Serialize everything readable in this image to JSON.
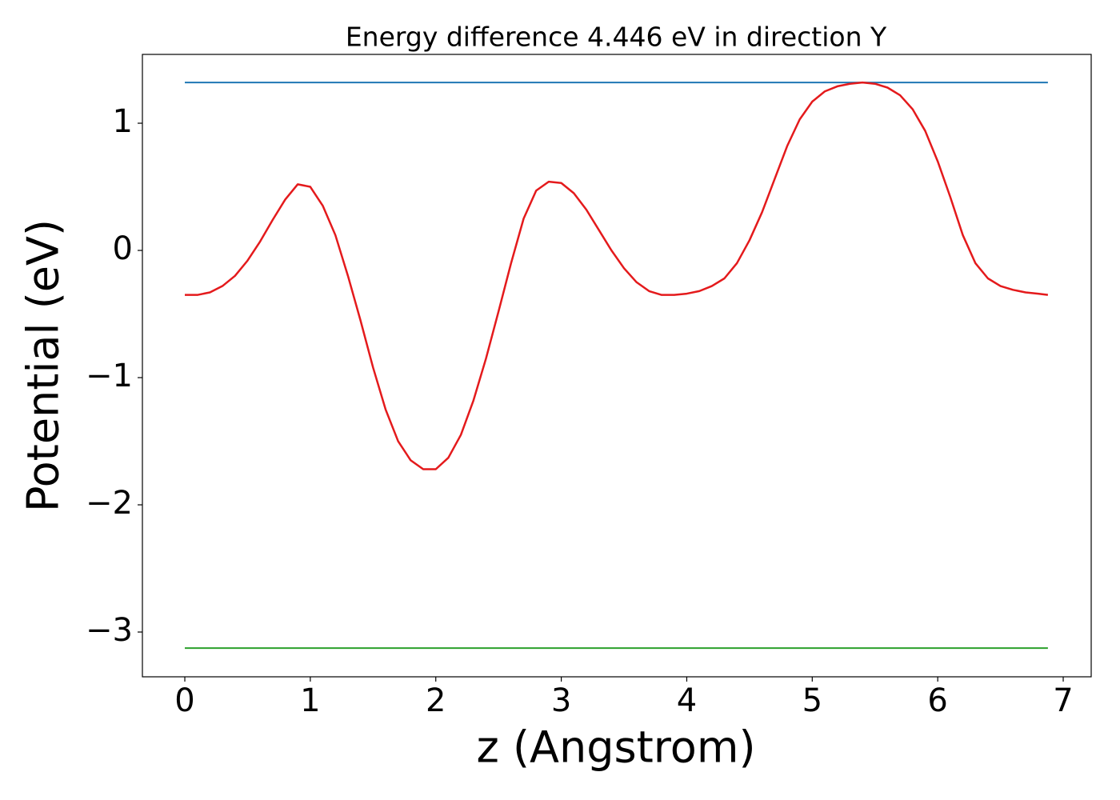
{
  "chart_data": {
    "type": "line",
    "title": "Energy difference 4.446 eV in direction Y",
    "xlabel": "z (Angstrom)",
    "ylabel": "Potential (eV)",
    "x": [
      0,
      0.1,
      0.2,
      0.3,
      0.4,
      0.5,
      0.6,
      0.7,
      0.8,
      0.9,
      1.0,
      1.1,
      1.2,
      1.3,
      1.4,
      1.5,
      1.6,
      1.7,
      1.8,
      1.9,
      2.0,
      2.1,
      2.2,
      2.3,
      2.4,
      2.5,
      2.6,
      2.7,
      2.8,
      2.9,
      3.0,
      3.1,
      3.2,
      3.3,
      3.4,
      3.5,
      3.6,
      3.7,
      3.8,
      3.9,
      4.0,
      4.1,
      4.2,
      4.3,
      4.4,
      4.5,
      4.6,
      4.7,
      4.8,
      4.9,
      5.0,
      5.1,
      5.2,
      5.3,
      5.4,
      5.5,
      5.6,
      5.7,
      5.8,
      5.9,
      6.0,
      6.1,
      6.2,
      6.3,
      6.4,
      6.5,
      6.6,
      6.7,
      6.8,
      6.878
    ],
    "series": [
      {
        "color": "#e41a1c",
        "values": [
          -0.35,
          -0.35,
          -0.33,
          -0.28,
          -0.2,
          -0.08,
          0.07,
          0.24,
          0.4,
          0.52,
          0.5,
          0.35,
          0.12,
          -0.2,
          -0.55,
          -0.92,
          -1.25,
          -1.5,
          -1.65,
          -1.72,
          -1.72,
          -1.63,
          -1.45,
          -1.18,
          -0.85,
          -0.48,
          -0.1,
          0.25,
          0.47,
          0.54,
          0.53,
          0.45,
          0.32,
          0.16,
          0.0,
          -0.14,
          -0.25,
          -0.32,
          -0.35,
          -0.35,
          -0.34,
          -0.32,
          -0.28,
          -0.22,
          -0.1,
          0.08,
          0.3,
          0.56,
          0.82,
          1.03,
          1.17,
          1.25,
          1.29,
          1.31,
          1.32,
          1.31,
          1.28,
          1.22,
          1.11,
          0.94,
          0.7,
          0.42,
          0.12,
          -0.1,
          -0.22,
          -0.28,
          -0.31,
          -0.33,
          -0.34,
          -0.35
        ]
      }
    ],
    "hlines": [
      {
        "y": 1.32,
        "color": "#1f77b4"
      },
      {
        "y": -3.126,
        "color": "#2ca02c"
      }
    ],
    "xlim": [
      -0.338,
      7.223
    ],
    "ylim": [
      -3.352,
      1.541
    ],
    "xticks": [
      0,
      1,
      2,
      3,
      4,
      5,
      6,
      7
    ],
    "yticks": [
      {
        "value": -3,
        "label": "−3"
      },
      {
        "value": -2,
        "label": "−2"
      },
      {
        "value": -1,
        "label": "−1"
      },
      0,
      1
    ],
    "grid": false
  }
}
